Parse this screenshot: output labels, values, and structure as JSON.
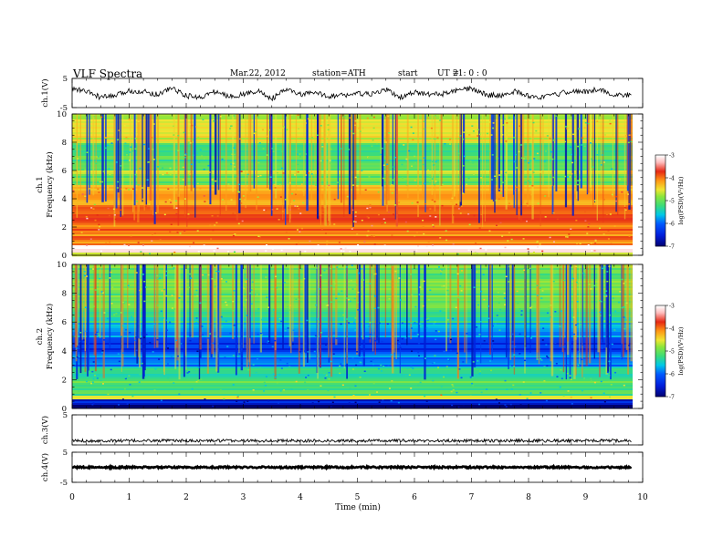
{
  "header": {
    "title": "VLF  Spectra",
    "date": "Mar.22, 2012",
    "station": "station=ATH",
    "start_label": "start",
    "ut_label": "UT  =",
    "start_time": "21: 0  : 0"
  },
  "chart_data": [
    {
      "type": "line",
      "name": "ch1-waveform",
      "ylabel": "ch.1(V)",
      "ylim": [
        -5,
        5
      ],
      "yticks": [
        "5",
        "-5"
      ],
      "xlim": [
        0,
        10
      ],
      "x_end": 9.8,
      "x": [
        0,
        0.25,
        0.5,
        0.75,
        1.0,
        1.25,
        1.5,
        1.75,
        2.0,
        2.25,
        2.5,
        2.75,
        3.0,
        3.25,
        3.5,
        3.75,
        4.0,
        4.25,
        4.5,
        4.75,
        5.0,
        5.25,
        5.5,
        5.75,
        6.0,
        6.25,
        6.5,
        6.75,
        7.0,
        7.25,
        7.5,
        7.75,
        8.0,
        8.25,
        8.5,
        8.75,
        9.0,
        9.25,
        9.5,
        9.8
      ],
      "y": [
        1.5,
        0.5,
        -1.5,
        -1.0,
        0.8,
        0.5,
        -0.5,
        1.8,
        -1.0,
        -1.5,
        0.5,
        -1.2,
        -0.5,
        0.8,
        -2.0,
        1.2,
        -0.5,
        0.0,
        -1.0,
        -0.8,
        -0.2,
        -0.5,
        1.2,
        -1.5,
        0.2,
        -0.5,
        -0.3,
        0.8,
        1.5,
        -0.5,
        -1.0,
        0.6,
        -1.0,
        -1.5,
        -0.5,
        0.8,
        0.3,
        1.5,
        -1.0,
        -0.5
      ]
    },
    {
      "type": "heatmap",
      "name": "ch1-spectrogram",
      "ylabel": "Frequency  (kHz)",
      "channel_label": "ch.1",
      "xlim": [
        0,
        10
      ],
      "x_end": 9.8,
      "ylim": [
        0,
        10
      ],
      "yticks": [
        "0",
        "2",
        "4",
        "6",
        "8",
        "10"
      ],
      "bands_khz": [
        {
          "from": 0.0,
          "to": 0.3,
          "value": -4.6
        },
        {
          "from": 0.3,
          "to": 0.8,
          "value": -3.0
        },
        {
          "from": 0.8,
          "to": 2.5,
          "value": -4.0
        },
        {
          "from": 2.5,
          "to": 3.6,
          "value": -3.8
        },
        {
          "from": 3.6,
          "to": 5.0,
          "value": -4.2
        },
        {
          "from": 5.0,
          "to": 5.8,
          "value": -5.0
        },
        {
          "from": 5.8,
          "to": 6.0,
          "value": -4.4
        },
        {
          "from": 6.0,
          "to": 8.0,
          "value": -5.1
        },
        {
          "from": 8.0,
          "to": 10.0,
          "value": -4.6
        }
      ],
      "colorbar": {
        "label": "log(PSD)(V²/Hz)",
        "range": [
          -7,
          -3
        ],
        "ticks": [
          "-3",
          "-4",
          "-5",
          "-6",
          "-7"
        ]
      }
    },
    {
      "type": "heatmap",
      "name": "ch2-spectrogram",
      "ylabel": "Frequency  (kHz)",
      "channel_label": "ch.2",
      "xlim": [
        0,
        10
      ],
      "x_end": 9.8,
      "ylim": [
        0,
        10
      ],
      "yticks": [
        "0",
        "2",
        "4",
        "6",
        "8",
        "10"
      ],
      "bands_khz": [
        {
          "from": 0.0,
          "to": 0.3,
          "value": -6.9
        },
        {
          "from": 0.3,
          "to": 0.7,
          "value": -6.5
        },
        {
          "from": 0.7,
          "to": 1.0,
          "value": -4.6
        },
        {
          "from": 1.0,
          "to": 2.0,
          "value": -5.1
        },
        {
          "from": 2.0,
          "to": 3.0,
          "value": -5.4
        },
        {
          "from": 3.0,
          "to": 4.0,
          "value": -5.9
        },
        {
          "from": 4.0,
          "to": 5.0,
          "value": -6.3
        },
        {
          "from": 5.0,
          "to": 6.0,
          "value": -5.7
        },
        {
          "from": 6.0,
          "to": 7.0,
          "value": -5.3
        },
        {
          "from": 7.0,
          "to": 10.0,
          "value": -5.0
        }
      ],
      "colorbar": {
        "label": "log(PSD)(V²/Hz)",
        "range": [
          -7,
          -3
        ],
        "ticks": [
          "-3",
          "-4",
          "-5",
          "-6",
          "-7"
        ]
      }
    },
    {
      "type": "line",
      "name": "ch3-waveform",
      "ylabel": "ch.3(V)",
      "ylim": [
        -5,
        5
      ],
      "yticks": [
        "5"
      ],
      "xlim": [
        0,
        10
      ],
      "x_end": 9.8,
      "level": -3.6
    },
    {
      "type": "line",
      "name": "ch4-waveform",
      "ylabel": "ch.4(V)",
      "ylim": [
        -5,
        5
      ],
      "yticks": [
        "5",
        "-5"
      ],
      "xlim": [
        0,
        10
      ],
      "x_end": 9.8,
      "level": 0
    }
  ],
  "x_axis": {
    "label": "Time  (min)",
    "ticks": [
      "0",
      "1",
      "2",
      "3",
      "4",
      "5",
      "6",
      "7",
      "8",
      "9",
      "10"
    ]
  },
  "colors": {
    "low": "#000080",
    "mid_blue": "#0050ff",
    "cyan": "#00e0e0",
    "green": "#40e060",
    "yellow": "#f0e040",
    "orange": "#ff8000",
    "red": "#e02020",
    "high": "#ffffff"
  }
}
